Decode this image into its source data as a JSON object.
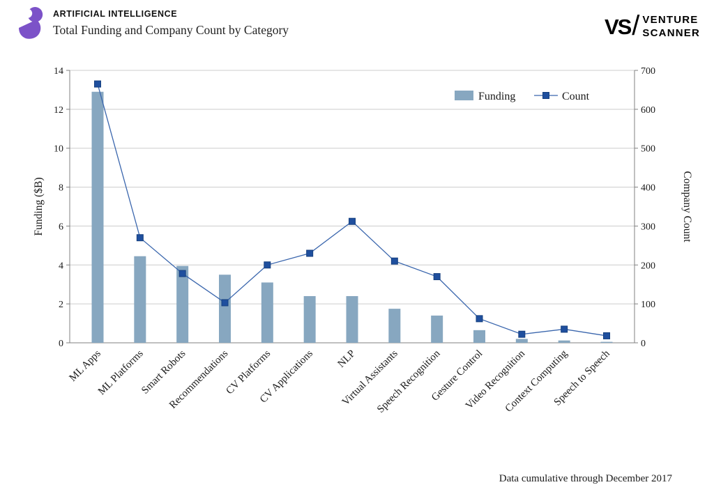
{
  "header": {
    "category": "ARTIFICIAL INTELLIGENCE",
    "title": "Total Funding and Company Count by Category"
  },
  "brand": {
    "mark": "VS",
    "slash": "/",
    "word1": "VENTURE",
    "word2": "SCANNER"
  },
  "legend": {
    "funding_label": "Funding",
    "count_label": "Count"
  },
  "footer": {
    "note": "Data cumulative through December 2017"
  },
  "chart_data": {
    "type": "bar+line",
    "title": "Total Funding and Company Count by Category",
    "categories": [
      "ML Apps",
      "ML Platforms",
      "Smart Robots",
      "Recommendations",
      "CV Platforms",
      "CV Applications",
      "NLP",
      "Virtual Assistants",
      "Speech Recognition",
      "Gesture Control",
      "Video Recognition",
      "Context Computing",
      "Speech to Speech"
    ],
    "series": [
      {
        "name": "Funding",
        "type": "bar",
        "axis": "left",
        "color": "#87A7C0",
        "values": [
          12.9,
          4.45,
          3.95,
          3.5,
          3.1,
          2.4,
          2.4,
          1.75,
          1.4,
          0.65,
          0.2,
          0.12,
          0.05
        ]
      },
      {
        "name": "Count",
        "type": "line",
        "axis": "right",
        "color": "#3A66AD",
        "marker_color": "#1F4F9E",
        "marker_stroke": "#16407F",
        "values": [
          665,
          270,
          178,
          103,
          200,
          230,
          312,
          210,
          170,
          62,
          22,
          35,
          18
        ]
      }
    ],
    "left_axis": {
      "label": "Funding ($B)",
      "min": 0,
      "max": 14,
      "ticks": [
        0,
        2,
        4,
        6,
        8,
        10,
        12,
        14
      ]
    },
    "right_axis": {
      "label": "Company Count",
      "min": 0,
      "max": 700,
      "ticks": [
        0,
        100,
        200,
        300,
        400,
        500,
        600,
        700
      ]
    },
    "grid": "horizontal",
    "grid_color": "#cccccc",
    "axis_color": "#808080",
    "legend_position": "top-right-inside"
  }
}
